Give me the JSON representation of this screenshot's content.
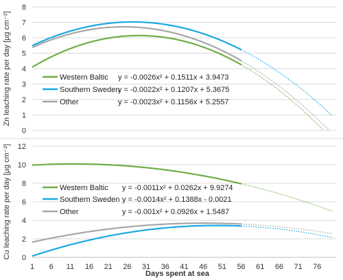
{
  "chart_data": [
    {
      "type": "line",
      "ylabel": "Zn leaching rate per day [µg cm⁻²]",
      "ylim": [
        0,
        8
      ],
      "yticks": [
        0,
        1,
        2,
        3,
        4,
        5,
        6,
        7,
        8
      ],
      "xlim": [
        1,
        81
      ],
      "fit_range": [
        1,
        56
      ],
      "extrapolation_range": [
        56,
        80
      ],
      "legend_placement": "bottom-left",
      "series": [
        {
          "name": "Western Baltic",
          "color": "#70ad47",
          "coef": [
            -0.0026,
            0.1511,
            3.9473
          ],
          "equation": "y = -0.0026x² + 0.1511x + 3.9473"
        },
        {
          "name": "Southern Sweden",
          "color": "#1aa8e0",
          "coef": [
            -0.0022,
            0.1207,
            5.3675
          ],
          "equation": "y = -0.0022x² + 0.1207x + 5.3675"
        },
        {
          "name": "Other",
          "color": "#a6a6a6",
          "coef": [
            -0.0023,
            0.1156,
            5.2557
          ],
          "equation": "y = -0.0023x² + 0.1156x + 5.2557"
        }
      ]
    },
    {
      "type": "line",
      "ylabel": "Cu leaching rate per day [µg cm⁻²]",
      "xlabel": "Days spent at sea",
      "ylim": [
        0,
        12
      ],
      "yticks": [
        0,
        2,
        4,
        6,
        8,
        10,
        12
      ],
      "xlim": [
        1,
        81
      ],
      "xticks": [
        1,
        6,
        11,
        16,
        21,
        26,
        31,
        36,
        41,
        46,
        51,
        56,
        61,
        66,
        71,
        76
      ],
      "fit_range": [
        1,
        56
      ],
      "extrapolation_range": [
        56,
        80
      ],
      "legend_placement": "center-left",
      "series": [
        {
          "name": "Western Baltic",
          "color": "#70ad47",
          "coef": [
            -0.0011,
            0.0262,
            9.9274
          ],
          "equation": "y = -0.0011x² + 0.0262x + 9.9274"
        },
        {
          "name": "Southern Sweden",
          "color": "#1aa8e0",
          "coef": [
            -0.0014,
            0.1388,
            -0.0021
          ],
          "equation": "y = -0.0014x² + 0.1388x - 0.0021"
        },
        {
          "name": "Other",
          "color": "#a6a6a6",
          "coef": [
            -0.001,
            0.0926,
            1.5487
          ],
          "equation": "y = -0.001x² + 0.0926x + 1.5487"
        }
      ]
    }
  ]
}
